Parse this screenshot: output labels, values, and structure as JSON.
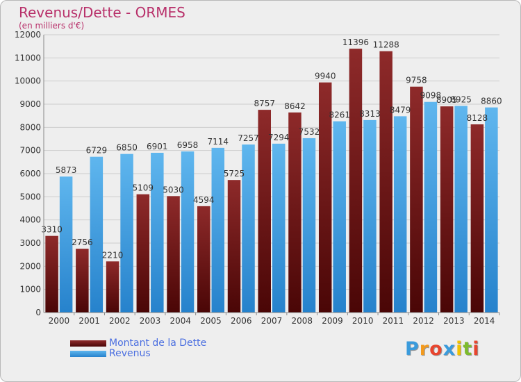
{
  "header": {
    "title": "Revenus/Dette - ORMES",
    "subtitle": "(en milliers d'€)"
  },
  "chart_data": {
    "type": "bar",
    "categories": [
      "2000",
      "2001",
      "2002",
      "2003",
      "2004",
      "2005",
      "2006",
      "2007",
      "2008",
      "2009",
      "2010",
      "2011",
      "2012",
      "2013",
      "2014"
    ],
    "series": [
      {
        "name": "Montant de la Dette",
        "color": "#8b1c1c",
        "values": [
          3310,
          2756,
          2210,
          5109,
          5030,
          4594,
          5725,
          8757,
          8642,
          9940,
          11396,
          11288,
          9758,
          8905,
          8128
        ],
        "labels": [
          "3310",
          "2756",
          "2210",
          "5109",
          "5030",
          "4594",
          "5725",
          "8757",
          "8642",
          "9940",
          "11396",
          "11288",
          "9758",
          "8905",
          "8128"
        ]
      },
      {
        "name": "Revenus",
        "color": "#3d9be0",
        "values": [
          5873,
          6729,
          6850,
          6901,
          6958,
          7114,
          7257,
          7294,
          7532,
          8261,
          8313,
          8479,
          9098,
          8925,
          8860
        ],
        "labels": [
          "5873",
          "6729",
          "6850",
          "6901",
          "6958",
          "7114",
          "7257",
          "7294",
          "7532",
          "8261",
          "8313",
          "8479",
          "9098",
          "8925",
          "8860"
        ]
      }
    ],
    "y_ticks": [
      "0",
      "1000",
      "2000",
      "3000",
      "4000",
      "5000",
      "6000",
      "7000",
      "8000",
      "9000",
      "10000",
      "11000",
      "12000"
    ],
    "ylim": [
      0,
      12000
    ],
    "xlabel": "",
    "ylabel": "",
    "grid": true,
    "legend_position": "bottom-left"
  },
  "legend": {
    "items": [
      {
        "label": "Montant de la Dette",
        "color": "#7a1515"
      },
      {
        "label": "Revenus",
        "color": "#3d9be0"
      }
    ]
  },
  "logo": {
    "letters": [
      "P",
      "r",
      "o",
      "x",
      "i",
      "t",
      "i"
    ],
    "colors": [
      "#3a9bdc",
      "#f39a1e",
      "#e8452e",
      "#3a9bdc",
      "#f2c200",
      "#7dbb2d",
      "#e8452e"
    ]
  }
}
